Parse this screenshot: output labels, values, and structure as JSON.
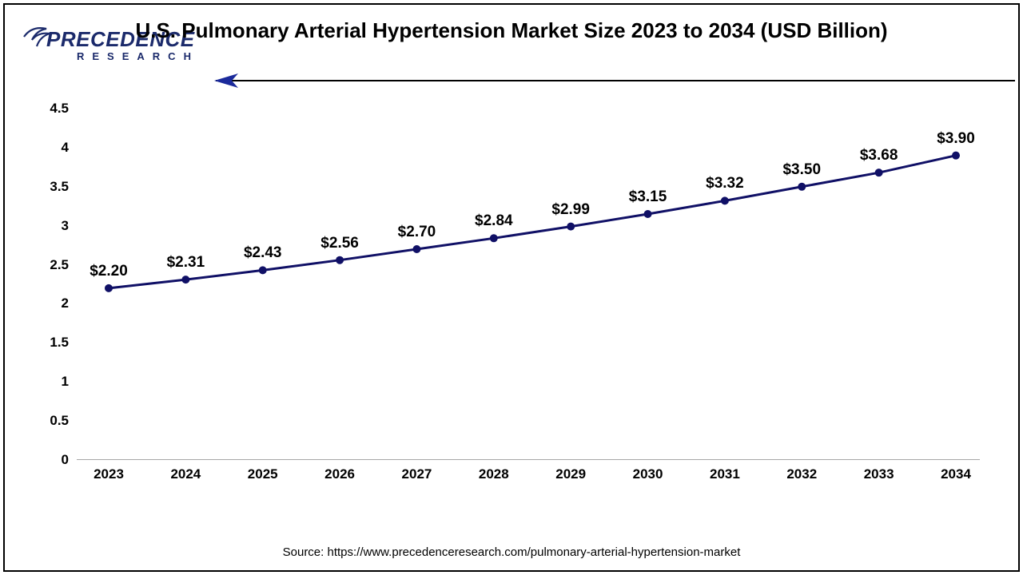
{
  "branding": {
    "logo_top": "PRECEDENCE",
    "logo_sub": "RESEARCH"
  },
  "chart": {
    "type": "line",
    "title": "U.S. Pulmonary Arterial Hypertension Market Size 2023 to 2034 (USD Billion)",
    "categories": [
      "2023",
      "2024",
      "2025",
      "2026",
      "2027",
      "2028",
      "2029",
      "2030",
      "2031",
      "2032",
      "2033",
      "2034"
    ],
    "values": [
      2.2,
      2.31,
      2.43,
      2.56,
      2.7,
      2.84,
      2.99,
      3.15,
      3.32,
      3.5,
      3.68,
      3.9
    ],
    "data_labels": [
      "$2.20",
      "$2.31",
      "$2.43",
      "$2.56",
      "$2.70",
      "$2.84",
      "$2.99",
      "$3.15",
      "$3.32",
      "$3.50",
      "$3.68",
      "$3.90"
    ],
    "line_color": "#101066",
    "marker_color": "#101066",
    "marker_size": 5,
    "line_width": 3,
    "ylim": [
      0,
      4.5
    ],
    "ytick_step": 0.5,
    "yticks": [
      "0",
      "0.5",
      "1",
      "1.5",
      "2",
      "2.5",
      "3",
      "3.5",
      "4",
      "4.5"
    ],
    "background_color": "#ffffff",
    "axis_color": "#888888",
    "label_fontsize": 17,
    "data_label_fontsize": 19,
    "title_fontsize": 26
  },
  "arrow": {
    "color": "#1b2a9b"
  },
  "source": "Source: https://www.precedenceresearch.com/pulmonary-arterial-hypertension-market"
}
